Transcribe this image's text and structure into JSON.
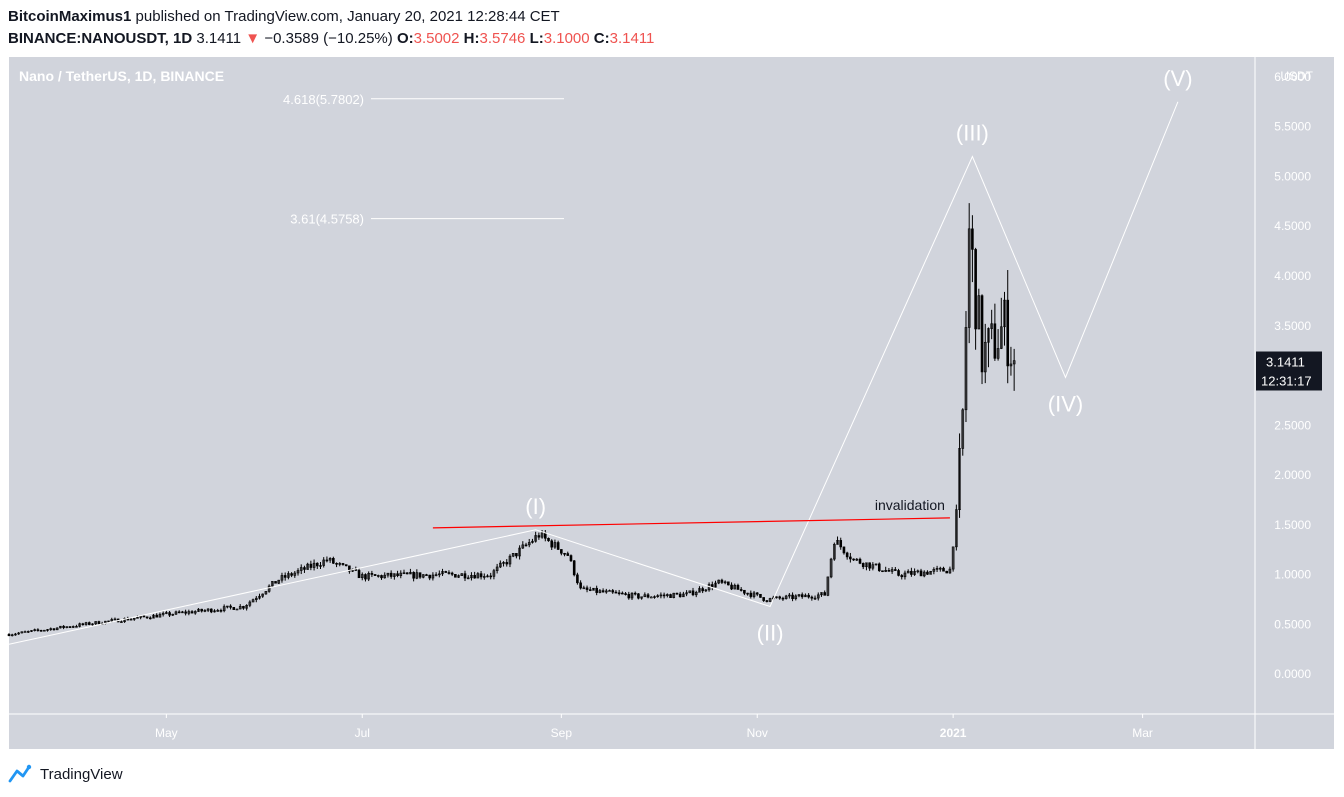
{
  "header": {
    "author": "BitcoinMaximus1",
    "published": "published on TradingView.com, January 20, 2021 12:28:44 CET",
    "symbol": "BINANCE:NANOUSDT, 1D",
    "price": "3.1411",
    "change": "−0.3589 (−10.25%)",
    "o_label": "O:",
    "o_value": "3.5002",
    "h_label": "H:",
    "h_value": "3.5746",
    "l_label": "L:",
    "l_value": "3.1000",
    "c_label": "C:",
    "c_value": "3.1411"
  },
  "footer": {
    "brand": "TradingView",
    "logo_icon": "tradingview-logo-icon"
  },
  "colors": {
    "plot_bg": "#d1d4dc",
    "candle": "#000000",
    "wave": "#ffffff",
    "invalidation": "#ff0000",
    "text_dark": "#131722",
    "axis_text": "#ffffff"
  },
  "chart_data": {
    "type": "candlestick",
    "title": "Nano / TetherUS, 1D, BINANCE",
    "y_unit": "USDT",
    "ylim": [
      -0.4,
      6.2
    ],
    "y_ticks": [
      "0.0000",
      "0.5000",
      "1.0000",
      "1.5000",
      "2.0000",
      "2.5000",
      "3.0000",
      "3.5000",
      "4.0000",
      "4.5000",
      "5.0000",
      "5.5000",
      "6.0000"
    ],
    "x_range": [
      "2020-03-13",
      "2021-04-05"
    ],
    "x_ticks": [
      {
        "label": "May",
        "date": "2020-05-01"
      },
      {
        "label": "Jul",
        "date": "2020-07-01"
      },
      {
        "label": "Sep",
        "date": "2020-09-01"
      },
      {
        "label": "Nov",
        "date": "2020-11-01"
      },
      {
        "label": "2021",
        "date": "2021-01-01"
      },
      {
        "label": "Mar",
        "date": "2021-03-01"
      }
    ],
    "price_keypoints": [
      {
        "date": "2020-03-13",
        "value": 0.4
      },
      {
        "date": "2020-04-10",
        "value": 0.52
      },
      {
        "date": "2020-05-01",
        "value": 0.6
      },
      {
        "date": "2020-05-25",
        "value": 0.68
      },
      {
        "date": "2020-06-05",
        "value": 0.95
      },
      {
        "date": "2020-06-20",
        "value": 1.15
      },
      {
        "date": "2020-07-01",
        "value": 0.98
      },
      {
        "date": "2020-07-25",
        "value": 1.0
      },
      {
        "date": "2020-08-10",
        "value": 1.0
      },
      {
        "date": "2020-08-25",
        "value": 1.4
      },
      {
        "date": "2020-09-03",
        "value": 1.2
      },
      {
        "date": "2020-09-07",
        "value": 0.85
      },
      {
        "date": "2020-09-25",
        "value": 0.78
      },
      {
        "date": "2020-10-10",
        "value": 0.8
      },
      {
        "date": "2020-10-20",
        "value": 0.92
      },
      {
        "date": "2020-11-04",
        "value": 0.75
      },
      {
        "date": "2020-11-22",
        "value": 0.8
      },
      {
        "date": "2020-11-25",
        "value": 1.35
      },
      {
        "date": "2020-12-01",
        "value": 1.15
      },
      {
        "date": "2020-12-15",
        "value": 1.0
      },
      {
        "date": "2020-12-31",
        "value": 1.05
      },
      {
        "date": "2021-01-02",
        "value": 1.6
      },
      {
        "date": "2021-01-04",
        "value": 2.6
      },
      {
        "date": "2021-01-06",
        "value": 4.4
      },
      {
        "date": "2021-01-10",
        "value": 3.2
      },
      {
        "date": "2021-01-13",
        "value": 3.3
      },
      {
        "date": "2021-01-17",
        "value": 3.5
      },
      {
        "date": "2021-01-20",
        "value": 3.14
      }
    ],
    "wave_points": [
      {
        "label": "",
        "date": "2020-03-13",
        "value": 0.3
      },
      {
        "label": "(I)",
        "date": "2020-08-24",
        "value": 1.45
      },
      {
        "label": "(II)",
        "date": "2020-11-05",
        "value": 0.68
      },
      {
        "label": "(III)",
        "date": "2021-01-07",
        "value": 5.2
      },
      {
        "label": "(IV)",
        "date": "2021-02-05",
        "value": 2.98
      },
      {
        "label": "(V)",
        "date": "2021-03-12",
        "value": 5.75
      }
    ],
    "fib_levels": [
      {
        "label": "4.618(5.7802)",
        "value": 5.7802
      },
      {
        "label": "3.61(4.5758)",
        "value": 4.5758
      }
    ],
    "invalidation": {
      "label": "invalidation",
      "from": {
        "date": "2020-07-23",
        "value": 1.47
      },
      "to": {
        "date": "2020-12-31",
        "value": 1.57
      }
    },
    "last_price": "3.1411",
    "countdown": "12:31:17"
  }
}
